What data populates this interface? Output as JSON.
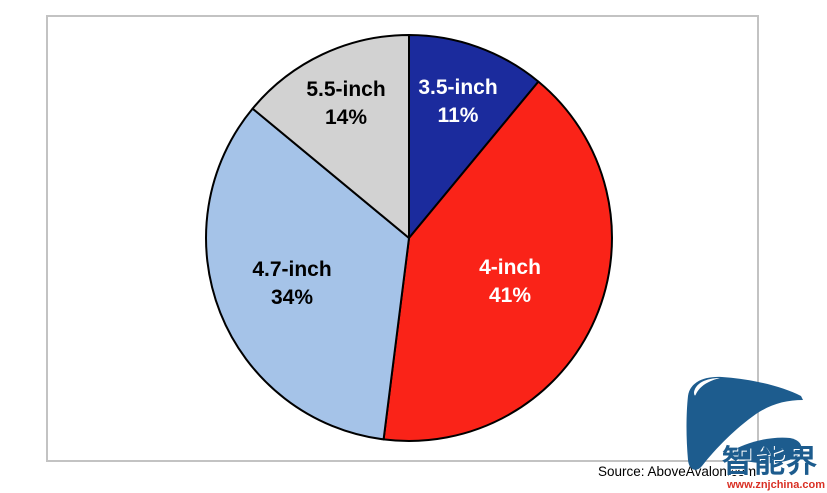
{
  "frame": {
    "border_color": "#c3c3c3"
  },
  "source_note": "Source: AboveAvalon.com",
  "watermark": {
    "logo_text": "智能界",
    "url": "www.znjchina.com",
    "logo_color": "#1d5c8e",
    "url_color": "#d93025"
  },
  "chart_data": {
    "type": "pie",
    "title": "",
    "categories": [
      "3.5-inch",
      "4-inch",
      "4.7-inch",
      "5.5-inch"
    ],
    "values": [
      11,
      41,
      34,
      14
    ],
    "unit": "%",
    "start_angle_deg": 0,
    "direction": "clockwise",
    "stroke_color": "#000000",
    "legend": "none",
    "slices": [
      {
        "label": "3.5-inch",
        "value": 11,
        "value_label": "11%",
        "color": "#1b2b9d",
        "label_color": "#ffffff",
        "label_r": 0.71
      },
      {
        "label": "4-inch",
        "value": 41,
        "value_label": "41%",
        "color": "#fa2318",
        "label_color": "#ffffff",
        "label_r": 0.54
      },
      {
        "label": "4.7-inch",
        "value": 34,
        "value_label": "34%",
        "color": "#a5c3e8",
        "label_color": "#000000",
        "label_r": 0.62
      },
      {
        "label": "5.5-inch",
        "value": 14,
        "value_label": "14%",
        "color": "#d2d2d2",
        "label_color": "#000000",
        "label_r": 0.73
      }
    ]
  }
}
